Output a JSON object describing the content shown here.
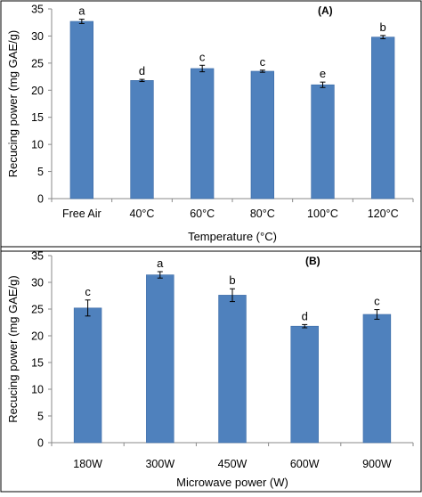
{
  "colors": {
    "bar": "#4F81BD",
    "bar_edge": "#3A6AA6",
    "axis": "#8a8a8a",
    "frame": "#000000"
  },
  "chart_data": [
    {
      "type": "bar",
      "panel_label": "(A)",
      "categories": [
        "Free Air",
        "40°C",
        "60°C",
        "80°C",
        "100°C",
        "120°C"
      ],
      "values": [
        32.7,
        21.8,
        24.0,
        23.5,
        21.0,
        29.8
      ],
      "errors": [
        0.4,
        0.2,
        0.6,
        0.2,
        0.5,
        0.3
      ],
      "significance": [
        "a",
        "d",
        "c",
        "c",
        "e",
        "b"
      ],
      "xlabel": "Temperature (°C)",
      "ylabel": "Recucing power (mg GAE/g)",
      "ylim": [
        0,
        35
      ],
      "yticks": [
        0,
        5,
        10,
        15,
        20,
        25,
        30,
        35
      ],
      "grid": false,
      "legend": "none"
    },
    {
      "type": "bar",
      "panel_label": "(B)",
      "categories": [
        "180W",
        "300W",
        "450W",
        "600W",
        "900W"
      ],
      "values": [
        25.2,
        31.4,
        27.6,
        21.8,
        24.0
      ],
      "errors": [
        1.5,
        0.6,
        1.2,
        0.3,
        0.9
      ],
      "significance": [
        "c",
        "a",
        "b",
        "d",
        "c"
      ],
      "xlabel": "Microwave power (W)",
      "ylabel": "Recucing power (mg GAE/g)",
      "ylim": [
        0,
        35
      ],
      "yticks": [
        0,
        5,
        10,
        15,
        20,
        25,
        30,
        35
      ],
      "grid": false,
      "legend": "none"
    }
  ]
}
